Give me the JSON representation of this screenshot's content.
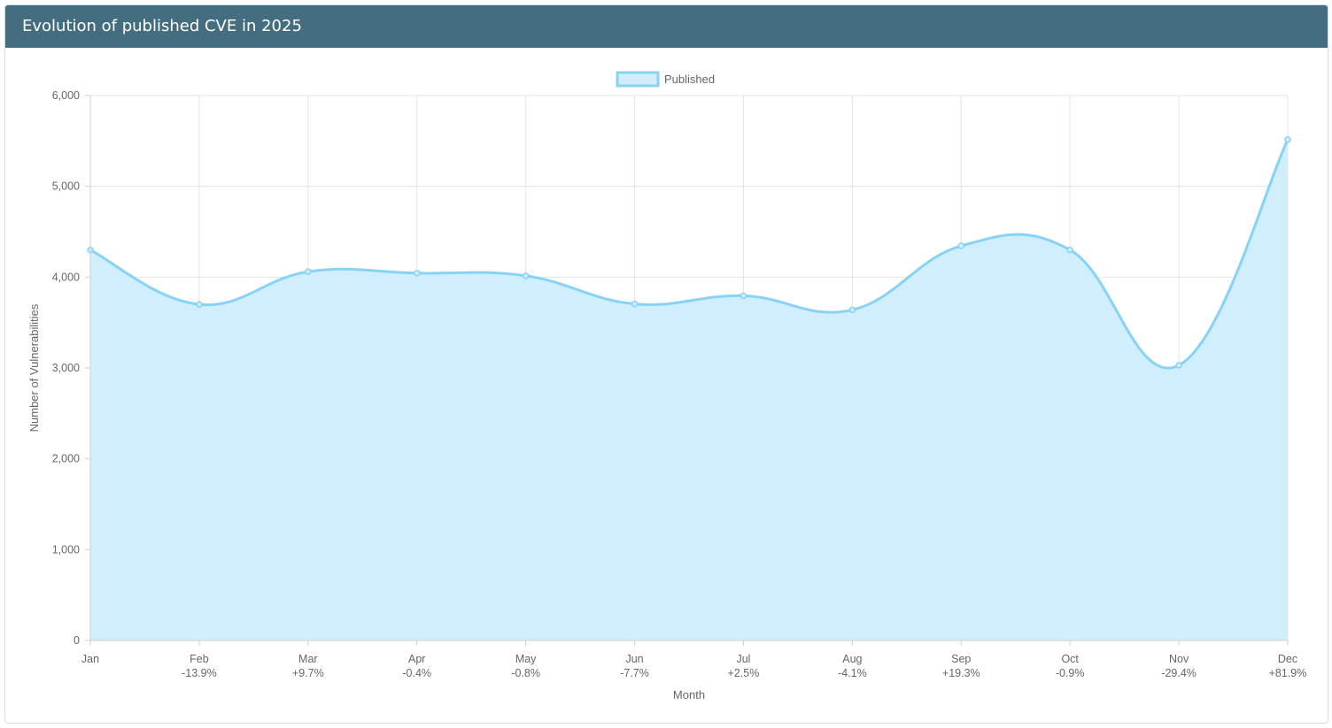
{
  "panel": {
    "title": "Evolution of published CVE in 2025"
  },
  "chart_data": {
    "type": "area",
    "title": "",
    "xlabel": "Month",
    "ylabel": "Number of Vulnerabilities",
    "ylim": [
      0,
      6000
    ],
    "y_ticks": [
      "0",
      "1,000",
      "2,000",
      "3,000",
      "4,000",
      "5,000",
      "6,000"
    ],
    "categories": [
      "Jan",
      "Feb",
      "Mar",
      "Apr",
      "May",
      "Jun",
      "Jul",
      "Aug",
      "Sep",
      "Oct",
      "Nov",
      "Dec"
    ],
    "change_labels": [
      "",
      "-13.9%",
      "+9.7%",
      "-0.4%",
      "-0.8%",
      "-7.7%",
      "+2.5%",
      "-4.1%",
      "+19.3%",
      "-0.9%",
      "-29.4%",
      "+81.9%"
    ],
    "grid": true,
    "legend_position": "top-center",
    "series": [
      {
        "name": "Published",
        "values": [
          4300,
          3700,
          4060,
          4045,
          4015,
          3705,
          3795,
          3640,
          4345,
          4300,
          3030,
          5515
        ],
        "line_color": "#87d3f7",
        "fill_color": "#d0eefc"
      }
    ]
  }
}
